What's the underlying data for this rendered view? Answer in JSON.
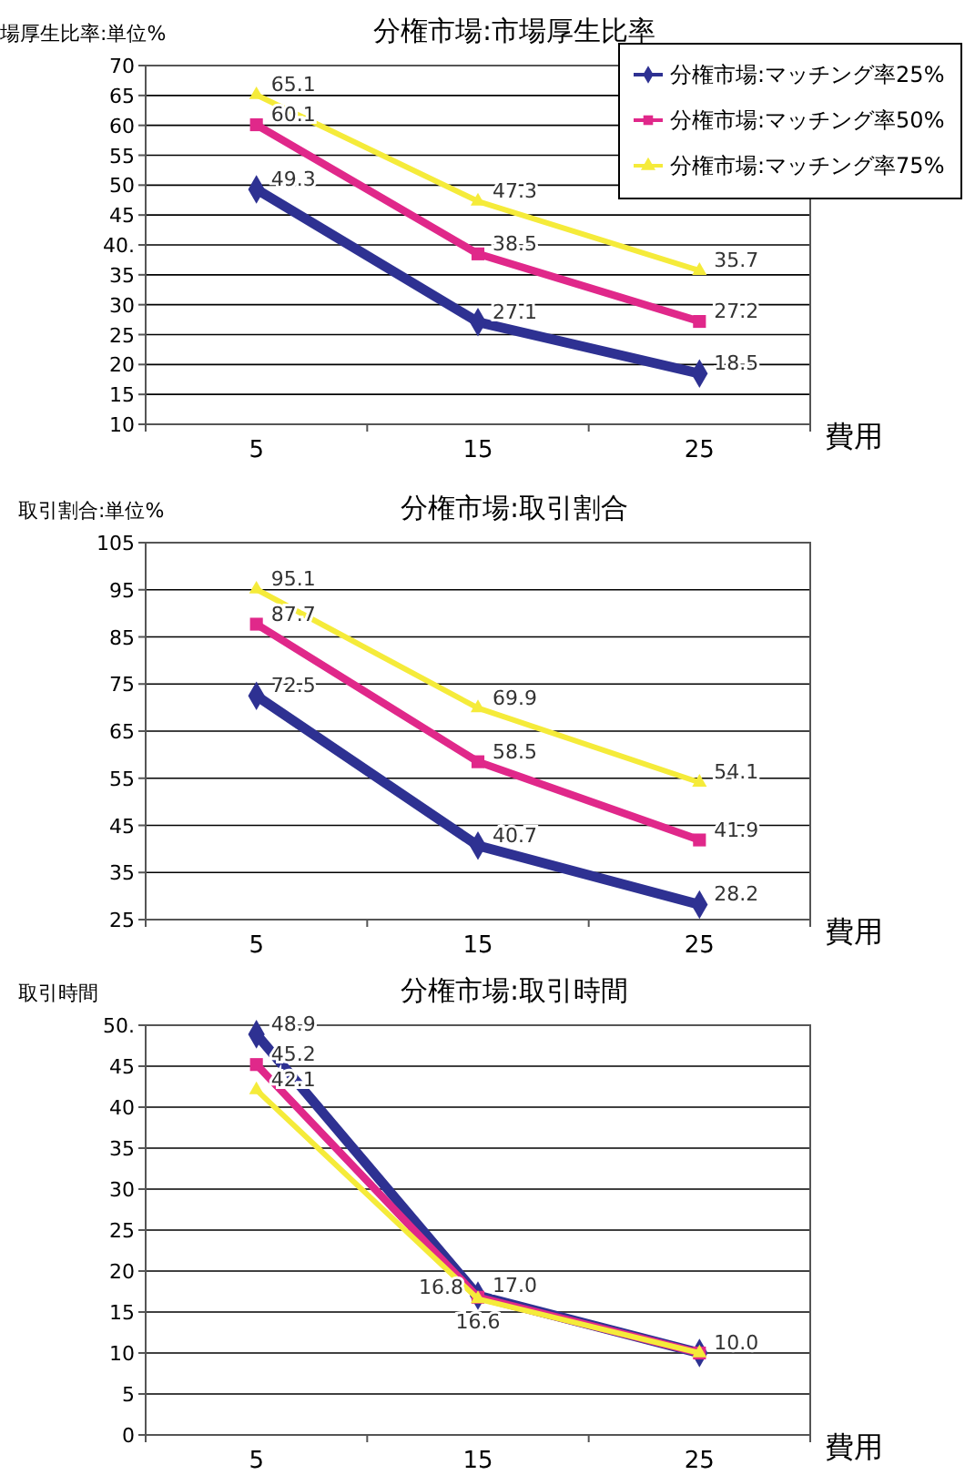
{
  "chart_data": [
    {
      "type": "line",
      "title": "分権市場:市場厚生比率",
      "ylabel": "場厚生比率:単位%",
      "xlabel": "費用",
      "categories": [
        "5",
        "15",
        "25"
      ],
      "ylim": [
        10,
        70
      ],
      "yticks": [
        10,
        15,
        20,
        25,
        30,
        35,
        {
          "value": 40,
          "label": "40."
        },
        45,
        50,
        55,
        60,
        65,
        70
      ],
      "grid": "y",
      "legend": "top right",
      "data_labels": true,
      "series": [
        {
          "name": "分権市場:マッチング率25%",
          "color": "#2e3192",
          "marker": "diamond",
          "values": [
            49.3,
            27.1,
            18.5
          ]
        },
        {
          "name": "分権市場:マッチング率50%",
          "color": "#e0288a",
          "marker": "square",
          "values": [
            60.1,
            38.5,
            27.2
          ]
        },
        {
          "name": "分権市場:マッチング率75%",
          "color": "#f5eb3a",
          "marker": "triangle",
          "values": [
            65.1,
            47.3,
            35.7
          ]
        }
      ]
    },
    {
      "type": "line",
      "title": "分権市場:取引割合",
      "ylabel": "取引割合:単位%",
      "xlabel": "費用",
      "categories": [
        "5",
        "15",
        "25"
      ],
      "ylim": [
        25,
        105
      ],
      "yticks": [
        25,
        35,
        45,
        55,
        65,
        75,
        85,
        95,
        105
      ],
      "grid": "y",
      "data_labels": true,
      "series": [
        {
          "color": "#2e3192",
          "marker": "diamond",
          "values": [
            72.5,
            40.7,
            28.2
          ]
        },
        {
          "color": "#e0288a",
          "marker": "square",
          "values": [
            87.7,
            58.5,
            41.9
          ]
        },
        {
          "color": "#f5eb3a",
          "marker": "triangle",
          "values": [
            95.1,
            69.9,
            54.1
          ]
        }
      ]
    },
    {
      "type": "line",
      "title": "分権市場:取引時間",
      "ylabel": "取引時間",
      "xlabel": "費用",
      "categories": [
        "5",
        "15",
        "25"
      ],
      "ylim": [
        0,
        50
      ],
      "yticks": [
        0,
        5,
        10,
        15,
        20,
        25,
        30,
        35,
        40,
        45,
        {
          "value": 50,
          "label": "50."
        }
      ],
      "grid": "y",
      "series": [
        {
          "color": "#2e3192",
          "marker": "diamond",
          "values": [
            48.9,
            17.0,
            10.0
          ],
          "value_labels": [
            "48.9",
            "17.0",
            "10.0"
          ]
        },
        {
          "color": "#e0288a",
          "marker": "square",
          "values": [
            45.2,
            16.8,
            10.0
          ],
          "value_labels": [
            "45.2",
            "16.8",
            null
          ]
        },
        {
          "color": "#f5eb3a",
          "marker": "triangle",
          "values": [
            42.1,
            16.6,
            10.0
          ],
          "value_labels": [
            "42.1",
            "16.6",
            null
          ]
        }
      ]
    }
  ]
}
